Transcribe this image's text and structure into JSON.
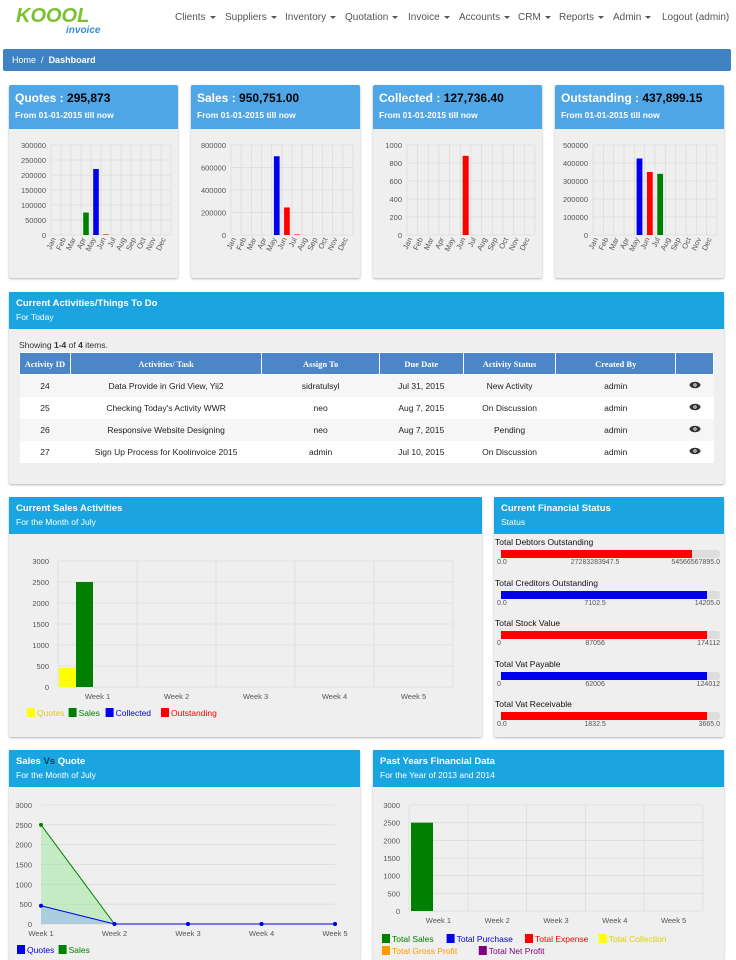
{
  "brand": {
    "logo_main": "KOOOL",
    "logo_sub": "invoice"
  },
  "nav": {
    "items": [
      {
        "label": "Clients",
        "dropdown": true
      },
      {
        "label": "Suppliers",
        "dropdown": true
      },
      {
        "label": "Inventory",
        "dropdown": true
      },
      {
        "label": "Quotation",
        "dropdown": true
      },
      {
        "label": "Invoice",
        "dropdown": true
      },
      {
        "label": "Accounts",
        "dropdown": true
      },
      {
        "label": "CRM",
        "dropdown": true
      },
      {
        "label": "Reports",
        "dropdown": true
      },
      {
        "label": "Admin",
        "dropdown": true
      },
      {
        "label": "Logout (admin)",
        "dropdown": false
      }
    ]
  },
  "breadcrumb": {
    "home": "Home",
    "sep": "/",
    "current": "Dashboard"
  },
  "stats": [
    {
      "label": "Quotes",
      "value": "295,873",
      "sub": "From 01-01-2015 till now",
      "color": "#4fa6e6"
    },
    {
      "label": "Sales",
      "value": "950,751.00",
      "sub": "From 01-01-2015 till now",
      "color": "#4fa6e6"
    },
    {
      "label": "Collected",
      "value": "127,736.40",
      "sub": "From 01-01-2015 till now",
      "color": "#4fa6e6"
    },
    {
      "label": "Outstanding",
      "value": "437,899.15",
      "sub": "From 01-01-2015 till now",
      "color": "#4fa6e6"
    }
  ],
  "activities": {
    "title": "Current Activities/Things To Do",
    "subtitle": "For Today",
    "summary_prefix": "Showing ",
    "summary_range": "1-4",
    "summary_mid": " of ",
    "summary_total": "4",
    "summary_suffix": " items.",
    "columns": [
      "Activity ID",
      "Activities/ Task",
      "Assign To",
      "Due Date",
      "Activity Status",
      "Created By"
    ],
    "rows": [
      {
        "id": "24",
        "task": "Data Provide in Grid View, Yii2",
        "assign": "sidratulsyl",
        "due": "Jul 31, 2015",
        "status": "New Activity",
        "created": "admin"
      },
      {
        "id": "25",
        "task": "Checking Today's Activity WWR",
        "assign": "neo",
        "due": "Aug 7, 2015",
        "status": "On Discussion",
        "created": "admin"
      },
      {
        "id": "26",
        "task": "Responsive Website Designing",
        "assign": "neo",
        "due": "Aug 7, 2015",
        "status": "Pending",
        "created": "admin"
      },
      {
        "id": "27",
        "task": "Sign Up Process for Koolinvoice 2015",
        "assign": "admin",
        "due": "Jul 10, 2015",
        "status": "On Discussion",
        "created": "admin"
      }
    ]
  },
  "sales_activities": {
    "title": "Current Sales Activities",
    "subtitle": "For the Month of July"
  },
  "financial_status": {
    "title": "Current Financial Status",
    "subtitle": "Status",
    "items": [
      {
        "label": "Total Debtors Outstanding",
        "ticks": [
          "0.0",
          "27283283947.5",
          "54566567895.0"
        ],
        "fraction": 0.93,
        "color": "#ff0000"
      },
      {
        "label": "Total Creditors Outstanding",
        "ticks": [
          "0.0",
          "7102.5",
          "14205.0"
        ],
        "fraction": 1.0,
        "color": "#0000ee"
      },
      {
        "label": "Total Stock Value",
        "ticks": [
          "0",
          "87056",
          "174112"
        ],
        "fraction": 1.0,
        "color": "#ff0000"
      },
      {
        "label": "Total Vat Payable",
        "ticks": [
          "0",
          "62006",
          "124012"
        ],
        "fraction": 1.0,
        "color": "#0000ee"
      },
      {
        "label": "Total Vat Receivable",
        "ticks": [
          "0.0",
          "1832.5",
          "3665.0"
        ],
        "fraction": 1.0,
        "color": "#ff0000"
      }
    ]
  },
  "sales_vs_quote": {
    "title_a": "Sales ",
    "title_vs": "Vs",
    "title_b": " Quote",
    "subtitle": "For the Month of July"
  },
  "past_years": {
    "title": "Past Years Financial Data",
    "subtitle": "For the Year of 2013 and 2014"
  },
  "chart_data": [
    {
      "type": "bar",
      "id": "quotes-monthly",
      "categories": [
        "Jan",
        "Feb",
        "Mar",
        "Apr",
        "May",
        "Jun",
        "Jul",
        "Aug",
        "Sep",
        "Oct",
        "Nov",
        "Dec"
      ],
      "series": [
        {
          "values": [
            0,
            0,
            0,
            75000,
            220000,
            2000,
            0,
            0,
            0,
            0,
            0,
            0
          ]
        }
      ],
      "bar_colors": {
        "Apr": "#008000",
        "May": "#0000ee",
        "Jun": "#ff0000"
      },
      "yticks": [
        "300000",
        "250000",
        "200000",
        "150000",
        "100000",
        "50000",
        "0"
      ],
      "ylim": [
        0,
        300000
      ]
    },
    {
      "type": "bar",
      "id": "sales-monthly",
      "categories": [
        "Jan",
        "Feb",
        "Mar",
        "Apr",
        "May",
        "Jun",
        "Jul",
        "Aug",
        "Sep",
        "Oct",
        "Nov",
        "Dec"
      ],
      "series": [
        {
          "values": [
            0,
            0,
            0,
            0,
            700000,
            245000,
            5000,
            0,
            0,
            0,
            0,
            0
          ]
        }
      ],
      "bar_colors": {
        "May": "#0000ee",
        "Jun": "#ff0000",
        "Jul": "#ff0000"
      },
      "yticks": [
        "800000",
        "600000",
        "400000",
        "200000",
        "0"
      ],
      "ylim": [
        0,
        800000
      ]
    },
    {
      "type": "bar",
      "id": "collected-monthly",
      "categories": [
        "Jan",
        "Feb",
        "Mar",
        "Apr",
        "May",
        "Jun",
        "Jul",
        "Aug",
        "Sep",
        "Oct",
        "Nov",
        "Dec"
      ],
      "series": [
        {
          "values": [
            0,
            0,
            0,
            0,
            0,
            880,
            0,
            0,
            0,
            0,
            0,
            0
          ]
        }
      ],
      "bar_colors": {
        "Jun": "#ff0000"
      },
      "yticks": [
        "1000",
        "800",
        "600",
        "400",
        "200",
        "0"
      ],
      "ylim": [
        0,
        1000
      ]
    },
    {
      "type": "bar",
      "id": "outstanding-monthly",
      "categories": [
        "Jan",
        "Feb",
        "Mar",
        "Apr",
        "May",
        "Jun",
        "Jul",
        "Aug",
        "Sep",
        "Oct",
        "Nov",
        "Dec"
      ],
      "series": [
        {
          "values": [
            0,
            0,
            0,
            0,
            425000,
            350000,
            340000,
            0,
            0,
            0,
            0,
            0
          ]
        }
      ],
      "bar_colors": {
        "May": "#0000ee",
        "Jun": "#ff0000",
        "Jul": "#008000"
      },
      "yticks": [
        "500000",
        "400000",
        "300000",
        "200000",
        "100000",
        "0"
      ],
      "ylim": [
        0,
        500000
      ]
    },
    {
      "type": "bar",
      "id": "sales-activities-weekly",
      "categories": [
        "Week 1",
        "Week 2",
        "Week 3",
        "Week 4",
        "Week 5"
      ],
      "series": [
        {
          "name": "Quotes",
          "color": "#ffff00",
          "values": [
            460,
            0,
            0,
            0,
            0
          ]
        },
        {
          "name": "Sales",
          "color": "#008000",
          "values": [
            2500,
            0,
            0,
            0,
            0
          ]
        },
        {
          "name": "Collected",
          "color": "#0000ee",
          "values": [
            0,
            0,
            0,
            0,
            0
          ]
        },
        {
          "name": "Outstanding",
          "color": "#ff0000",
          "values": [
            0,
            0,
            0,
            0,
            0
          ]
        }
      ],
      "yticks": [
        "3000",
        "2500",
        "2000",
        "1500",
        "1000",
        "500",
        "0"
      ],
      "ylim": [
        0,
        3000
      ]
    },
    {
      "type": "area",
      "id": "sales-vs-quote-weekly",
      "categories": [
        "Week 1",
        "Week 2",
        "Week 3",
        "Week 4",
        "Week 5"
      ],
      "series": [
        {
          "name": "Quotes",
          "color": "#0000ee",
          "values": [
            460,
            0,
            0,
            0,
            0
          ]
        },
        {
          "name": "Sales",
          "color": "#008000",
          "values": [
            2500,
            0,
            0,
            0,
            0
          ]
        }
      ],
      "yticks": [
        "3000",
        "2500",
        "2000",
        "1500",
        "1000",
        "500",
        "0"
      ],
      "ylim": [
        0,
        3000
      ]
    },
    {
      "type": "bar",
      "id": "past-years-weekly",
      "categories": [
        "Week 1",
        "Week 2",
        "Week 3",
        "Week 4",
        "Week 5"
      ],
      "series": [
        {
          "name": "Total Sales",
          "color": "#008000",
          "values": [
            2500,
            0,
            0,
            0,
            0
          ]
        },
        {
          "name": "Total Purchase",
          "color": "#0000ee",
          "values": [
            0,
            0,
            0,
            0,
            0
          ]
        },
        {
          "name": "Total Expense",
          "color": "#ff0000",
          "values": [
            0,
            0,
            0,
            0,
            0
          ]
        },
        {
          "name": "Total Collection",
          "color": "#ffff00",
          "values": [
            0,
            0,
            0,
            0,
            0
          ]
        },
        {
          "name": "Total Gross Profit",
          "color": "#ff9900",
          "values": [
            0,
            0,
            0,
            0,
            0
          ]
        },
        {
          "name": "Total Net Profit",
          "color": "#800080",
          "values": [
            0,
            0,
            0,
            0,
            0
          ]
        }
      ],
      "yticks": [
        "3000",
        "2500",
        "2000",
        "1500",
        "1000",
        "500",
        "0"
      ],
      "ylim": [
        0,
        3000
      ]
    }
  ]
}
